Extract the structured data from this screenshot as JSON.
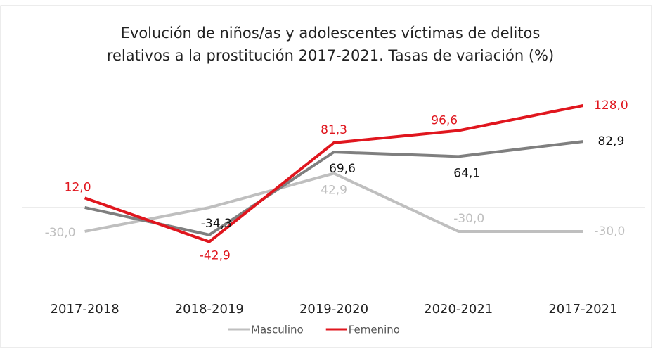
{
  "chart_data": {
    "type": "line",
    "title": [
      "Evolución de niños/as y adolescentes víctimas de delitos",
      "relativos a la prostitución 2017-2021. Tasas de variación (%)"
    ],
    "categories": [
      "2017-2018",
      "2018-2019",
      "2019-2020",
      "2020-2021",
      "2017-2021"
    ],
    "series": [
      {
        "name": "Masculino",
        "color": "#bfbfbf",
        "values": [
          -30.0,
          0,
          42.9,
          -30.0,
          -30.0
        ],
        "value_labels": [
          "-30,0",
          null,
          "42,9",
          "-30,0",
          "-30,0"
        ]
      },
      {
        "color": "#7f7f7f",
        "values": [
          0,
          -34.3,
          69.6,
          64.1,
          82.9
        ],
        "value_labels": [
          null,
          "-34,3",
          "69,6",
          "64,1",
          "82,9"
        ]
      },
      {
        "name": "Femenino",
        "color": "#e0161e",
        "values": [
          12.0,
          -42.9,
          81.3,
          96.6,
          128.0
        ],
        "value_labels": [
          "12,0",
          "-42,9",
          "81,3",
          "96,6",
          "128,0"
        ]
      }
    ],
    "ylim": [
      -80,
      140
    ]
  }
}
